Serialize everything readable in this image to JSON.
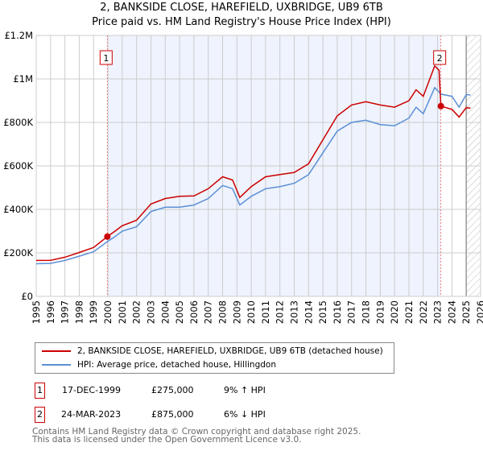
{
  "chart_data": {
    "type": "line",
    "title": "2, BANKSIDE CLOSE, HAREFIELD, UXBRIDGE, UB9 6TB",
    "subtitle": "Price paid vs. HM Land Registry's House Price Index (HPI)",
    "xlim": [
      1995,
      2026
    ],
    "ylim": [
      0,
      1200000
    ],
    "x_ticks": [
      "1995",
      "1996",
      "1997",
      "1998",
      "1999",
      "2000",
      "2001",
      "2002",
      "2003",
      "2004",
      "2005",
      "2006",
      "2007",
      "2008",
      "2009",
      "2010",
      "2011",
      "2012",
      "2013",
      "2014",
      "2015",
      "2016",
      "2017",
      "2018",
      "2019",
      "2020",
      "2021",
      "2022",
      "2023",
      "2024",
      "2025",
      "2026"
    ],
    "y_ticks": [
      {
        "v": 0,
        "label": "£0"
      },
      {
        "v": 200000,
        "label": "£200K"
      },
      {
        "v": 400000,
        "label": "£400K"
      },
      {
        "v": 600000,
        "label": "£600K"
      },
      {
        "v": 800000,
        "label": "£800K"
      },
      {
        "v": 1000000,
        "label": "£1M"
      },
      {
        "v": 1200000,
        "label": "£1.2M"
      }
    ],
    "grid": true,
    "series": [
      {
        "name": "2, BANKSIDE CLOSE, HAREFIELD, UXBRIDGE, UB9 6TB (detached house)",
        "color": "#cc0000",
        "x": [
          1995,
          1996,
          1997,
          1998,
          1999,
          1999.96,
          2000.5,
          2001,
          2002,
          2003,
          2004,
          2005,
          2006,
          2007,
          2008,
          2008.7,
          2009.2,
          2010,
          2011,
          2012,
          2013,
          2014,
          2015,
          2016,
          2017,
          2018,
          2019,
          2020,
          2021,
          2021.5,
          2022,
          2022.8,
          2023.1,
          2023.23,
          2024,
          2024.5,
          2025,
          2025.3
        ],
        "values": [
          165000,
          166000,
          180000,
          202000,
          225000,
          275000,
          300000,
          325000,
          350000,
          425000,
          450000,
          460000,
          462000,
          495000,
          550000,
          535000,
          455000,
          505000,
          550000,
          560000,
          570000,
          610000,
          720000,
          830000,
          880000,
          895000,
          880000,
          870000,
          900000,
          950000,
          920000,
          1060000,
          1040000,
          875000,
          860000,
          825000,
          868000,
          865000
        ]
      },
      {
        "name": "HPI: Average price, detached house, Hillingdon",
        "color": "#5b8fd6",
        "x": [
          1995,
          1996,
          1997,
          1998,
          1999,
          1999.96,
          2000.5,
          2001,
          2002,
          2003,
          2004,
          2005,
          2006,
          2007,
          2008,
          2008.7,
          2009.2,
          2010,
          2011,
          2012,
          2013,
          2014,
          2015,
          2016,
          2017,
          2018,
          2019,
          2020,
          2021,
          2021.5,
          2022,
          2022.8,
          2023.1,
          2023.23,
          2024,
          2024.5,
          2025,
          2025.3
        ],
        "values": [
          150000,
          152000,
          165000,
          185000,
          205000,
          252000,
          275000,
          300000,
          320000,
          390000,
          410000,
          410000,
          420000,
          450000,
          510000,
          495000,
          420000,
          460000,
          495000,
          505000,
          520000,
          560000,
          660000,
          760000,
          800000,
          810000,
          790000,
          785000,
          820000,
          870000,
          840000,
          960000,
          940000,
          930000,
          920000,
          870000,
          928000,
          926000
        ]
      }
    ],
    "sales": [
      {
        "id": "1",
        "x": 1999.96,
        "value": 275000
      },
      {
        "id": "2",
        "x": 2023.23,
        "value": 875000
      }
    ],
    "forecast_from": 2025.0
  },
  "legend": {
    "sale": "2, BANKSIDE CLOSE, HAREFIELD, UXBRIDGE, UB9 6TB (detached house)",
    "hpi": "HPI: Average price, detached house, Hillingdon"
  },
  "transactions": [
    {
      "id": "1",
      "date": "17-DEC-1999",
      "price": "£275,000",
      "hpi": "9% ↑ HPI"
    },
    {
      "id": "2",
      "date": "24-MAR-2023",
      "price": "£875,000",
      "hpi": "6% ↓ HPI"
    }
  ],
  "footer": {
    "line1": "Contains HM Land Registry data © Crown copyright and database right 2025.",
    "line2": "This data is licensed under the Open Government Licence v3.0."
  }
}
